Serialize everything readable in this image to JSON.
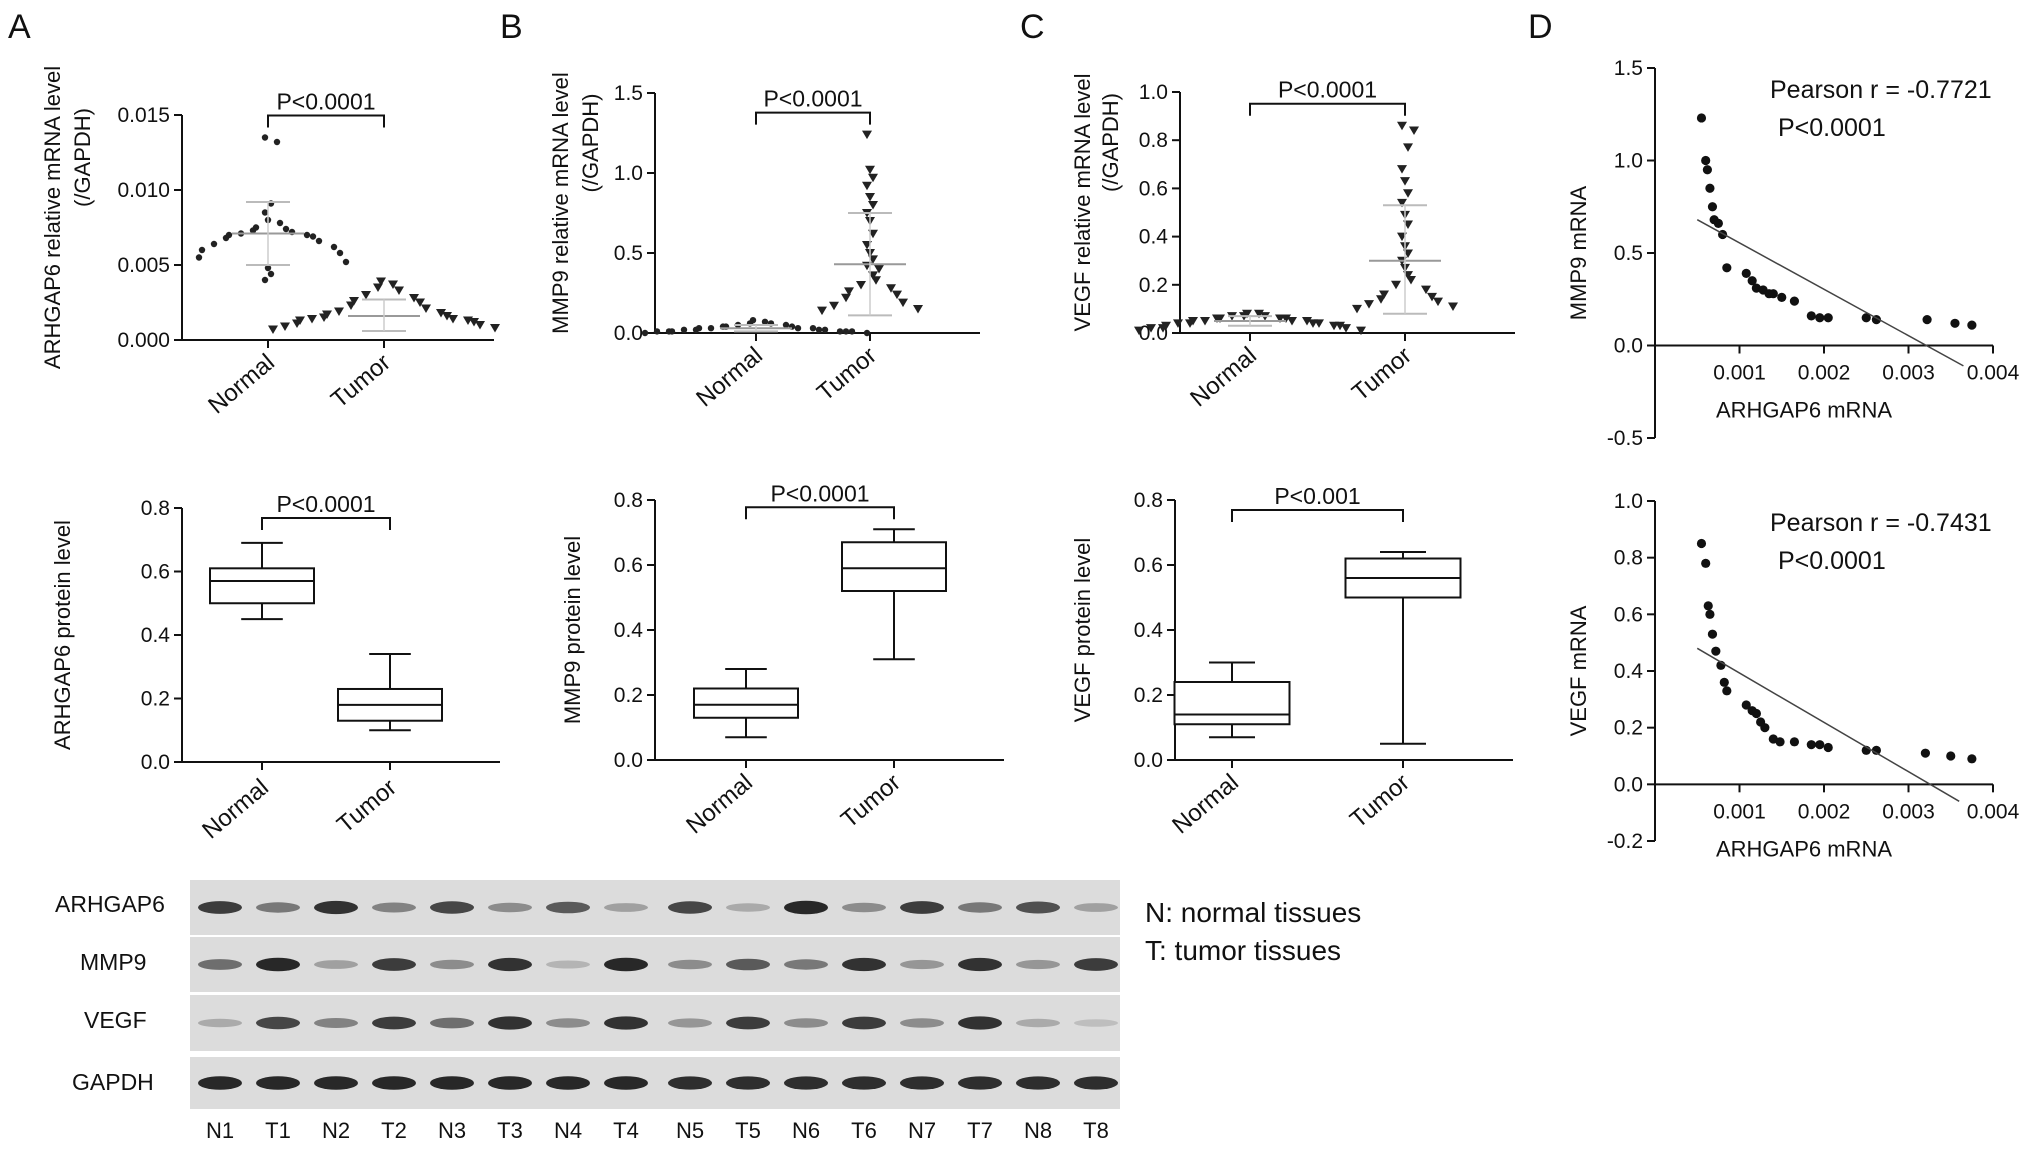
{
  "panel_letters": [
    "A",
    "B",
    "C",
    "D"
  ],
  "chart_data": [
    {
      "id": "A1",
      "type": "scatter",
      "subtype": "dot-plot",
      "ylabel": "ARHGAP6 relative mRNA level (/GAPDH)",
      "ylabel_lines": [
        "ARHGAP6 relative mRNA level",
        "(/GAPDH)"
      ],
      "ylim": [
        0,
        0.015
      ],
      "yticks": [
        "0.000",
        "0.005",
        "0.010",
        "0.015"
      ],
      "yticks_values": [
        0,
        0.005,
        0.01,
        0.015
      ],
      "categories": [
        "Normal",
        "Tumor"
      ],
      "pvalue": "P<0.0001",
      "series": [
        {
          "marker": "circle",
          "mean": 0.0071,
          "sd_upper": 0.0092,
          "sd_lower": 0.005,
          "values": [
            0.0135,
            0.0132,
            0.0091,
            0.0085,
            0.008,
            0.0078,
            0.0075,
            0.0074,
            0.0073,
            0.0072,
            0.0071,
            0.007,
            0.007,
            0.0069,
            0.0068,
            0.0066,
            0.0064,
            0.0062,
            0.006,
            0.0058,
            0.0055,
            0.0052,
            0.0048,
            0.0044,
            0.004
          ]
        },
        {
          "marker": "triangle-down",
          "mean": 0.0016,
          "sd_upper": 0.0027,
          "sd_lower": 0.0006,
          "values": [
            0.0039,
            0.0037,
            0.0035,
            0.0033,
            0.003,
            0.0028,
            0.0026,
            0.0025,
            0.0023,
            0.0021,
            0.0019,
            0.0018,
            0.0017,
            0.0016,
            0.0015,
            0.0014,
            0.0014,
            0.0013,
            0.0013,
            0.0012,
            0.0011,
            0.001,
            0.0009,
            0.0008,
            0.0007
          ]
        }
      ]
    },
    {
      "id": "A2",
      "type": "box",
      "ylabel": "ARHGAP6 protein level",
      "ylim": [
        0,
        0.8
      ],
      "yticks": [
        "0.0",
        "0.2",
        "0.4",
        "0.6",
        "0.8"
      ],
      "yticks_values": [
        0,
        0.2,
        0.4,
        0.6,
        0.8
      ],
      "categories": [
        "Normal",
        "Tumor"
      ],
      "pvalue": "P<0.0001",
      "boxes": [
        {
          "min": 0.45,
          "q1": 0.5,
          "median": 0.57,
          "q3": 0.61,
          "max": 0.69
        },
        {
          "min": 0.1,
          "q1": 0.13,
          "median": 0.18,
          "q3": 0.23,
          "max": 0.34
        }
      ]
    },
    {
      "id": "B1",
      "type": "scatter",
      "subtype": "dot-plot",
      "ylabel": "MMP9 relative mRNA level (/GAPDH)",
      "ylabel_lines": [
        "MMP9 relative mRNA level",
        "(/GAPDH)"
      ],
      "ylim": [
        0,
        1.5
      ],
      "yticks": [
        "0.0",
        "0.5",
        "1.0",
        "1.5"
      ],
      "yticks_values": [
        0,
        0.5,
        1.0,
        1.5
      ],
      "categories": [
        "Normal",
        "Tumor"
      ],
      "pvalue": "P<0.0001",
      "series": [
        {
          "marker": "circle",
          "mean": 0.03,
          "sd_upper": 0.05,
          "sd_lower": 0.01,
          "values": [
            0.08,
            0.07,
            0.06,
            0.06,
            0.05,
            0.05,
            0.04,
            0.04,
            0.04,
            0.03,
            0.03,
            0.03,
            0.03,
            0.02,
            0.02,
            0.02,
            0.02,
            0.01,
            0.01,
            0.01,
            0.01,
            0.01,
            0.01,
            0.0,
            0.0
          ]
        },
        {
          "marker": "triangle-down",
          "mean": 0.43,
          "sd_upper": 0.75,
          "sd_lower": 0.11,
          "values": [
            1.24,
            1.02,
            0.97,
            0.92,
            0.85,
            0.8,
            0.75,
            0.7,
            0.62,
            0.55,
            0.5,
            0.46,
            0.42,
            0.4,
            0.36,
            0.33,
            0.3,
            0.28,
            0.26,
            0.24,
            0.22,
            0.19,
            0.17,
            0.15,
            0.14
          ]
        }
      ]
    },
    {
      "id": "B2",
      "type": "box",
      "ylabel": "MMP9 protein level",
      "ylim": [
        0,
        0.8
      ],
      "yticks": [
        "0.0",
        "0.2",
        "0.4",
        "0.6",
        "0.8"
      ],
      "yticks_values": [
        0,
        0.2,
        0.4,
        0.6,
        0.8
      ],
      "categories": [
        "Normal",
        "Tumor"
      ],
      "pvalue": "P<0.0001",
      "boxes": [
        {
          "min": 0.07,
          "q1": 0.13,
          "median": 0.17,
          "q3": 0.22,
          "max": 0.28
        },
        {
          "min": 0.31,
          "q1": 0.52,
          "median": 0.59,
          "q3": 0.67,
          "max": 0.71
        }
      ]
    },
    {
      "id": "C1",
      "type": "scatter",
      "subtype": "dot-plot",
      "ylabel": "VEGF relative mRNA level (/GAPDH)",
      "ylabel_lines": [
        "VEGF relative mRNA level",
        "(/GAPDH)"
      ],
      "ylim": [
        0,
        1.0
      ],
      "yticks": [
        "0.0",
        "0.2",
        "0.4",
        "0.6",
        "0.8",
        "1.0"
      ],
      "yticks_values": [
        0,
        0.2,
        0.4,
        0.6,
        0.8,
        1.0
      ],
      "categories": [
        "Normal",
        "Tumor"
      ],
      "pvalue": "P<0.0001",
      "series": [
        {
          "marker": "triangle-down",
          "mean": 0.05,
          "sd_upper": 0.07,
          "sd_lower": 0.03,
          "values": [
            0.08,
            0.08,
            0.07,
            0.07,
            0.07,
            0.06,
            0.06,
            0.06,
            0.06,
            0.05,
            0.05,
            0.05,
            0.05,
            0.04,
            0.04,
            0.04,
            0.04,
            0.03,
            0.03,
            0.03,
            0.02,
            0.02,
            0.02,
            0.01,
            0.01
          ]
        },
        {
          "marker": "triangle-down",
          "mean": 0.3,
          "sd_upper": 0.53,
          "sd_lower": 0.08,
          "values": [
            0.86,
            0.84,
            0.77,
            0.68,
            0.63,
            0.58,
            0.54,
            0.49,
            0.45,
            0.4,
            0.36,
            0.33,
            0.3,
            0.27,
            0.24,
            0.22,
            0.2,
            0.18,
            0.16,
            0.15,
            0.14,
            0.13,
            0.12,
            0.11,
            0.1
          ]
        }
      ]
    },
    {
      "id": "C2",
      "type": "box",
      "ylabel": "VEGF protein level",
      "ylim": [
        0,
        0.8
      ],
      "yticks": [
        "0.0",
        "0.2",
        "0.4",
        "0.6",
        "0.8"
      ],
      "yticks_values": [
        0,
        0.2,
        0.4,
        0.6,
        0.8
      ],
      "categories": [
        "Normal",
        "Tumor"
      ],
      "pvalue": "P<0.001",
      "boxes": [
        {
          "min": 0.07,
          "q1": 0.11,
          "median": 0.14,
          "q3": 0.24,
          "max": 0.3
        },
        {
          "min": 0.05,
          "q1": 0.5,
          "median": 0.56,
          "q3": 0.62,
          "max": 0.64
        }
      ]
    },
    {
      "id": "D1",
      "type": "scatter",
      "subtype": "correlation",
      "xlabel": "ARHGAP6 mRNA",
      "ylabel": "MMP9 mRNA",
      "xlim": [
        0,
        0.004
      ],
      "ylim": [
        -0.5,
        1.5
      ],
      "xticks": [
        "0.001",
        "0.002",
        "0.003",
        "0.004"
      ],
      "xticks_values": [
        0.001,
        0.002,
        0.003,
        0.004
      ],
      "yticks": [
        "-0.5",
        "0.0",
        "0.5",
        "1.0",
        "1.5"
      ],
      "yticks_values": [
        -0.5,
        0,
        0.5,
        1.0,
        1.5
      ],
      "annotation": [
        "Pearson r = -0.7721",
        "P<0.0001"
      ],
      "fit_line": {
        "x": [
          0.0005,
          0.00365
        ],
        "y": [
          0.68,
          -0.11
        ]
      },
      "points": [
        [
          0.00055,
          1.23
        ],
        [
          0.0006,
          1.0
        ],
        [
          0.00062,
          0.95
        ],
        [
          0.00065,
          0.85
        ],
        [
          0.00068,
          0.75
        ],
        [
          0.0007,
          0.68
        ],
        [
          0.00075,
          0.66
        ],
        [
          0.0008,
          0.6
        ],
        [
          0.00085,
          0.42
        ],
        [
          0.00108,
          0.39
        ],
        [
          0.00115,
          0.35
        ],
        [
          0.0012,
          0.31
        ],
        [
          0.00128,
          0.3
        ],
        [
          0.00135,
          0.28
        ],
        [
          0.0014,
          0.28
        ],
        [
          0.0015,
          0.26
        ],
        [
          0.00165,
          0.24
        ],
        [
          0.00185,
          0.16
        ],
        [
          0.00195,
          0.15
        ],
        [
          0.00205,
          0.15
        ],
        [
          0.0025,
          0.15
        ],
        [
          0.00262,
          0.14
        ],
        [
          0.00322,
          0.14
        ],
        [
          0.00355,
          0.12
        ],
        [
          0.00375,
          0.11
        ]
      ]
    },
    {
      "id": "D2",
      "type": "scatter",
      "subtype": "correlation",
      "xlabel": "ARHGAP6 mRNA",
      "ylabel": "VEGF mRNA",
      "xlim": [
        0,
        0.004
      ],
      "ylim": [
        -0.2,
        1.0
      ],
      "xticks": [
        "0.001",
        "0.002",
        "0.003",
        "0.004"
      ],
      "xticks_values": [
        0.001,
        0.002,
        0.003,
        0.004
      ],
      "yticks": [
        "-0.2",
        "0.0",
        "0.2",
        "0.4",
        "0.6",
        "0.8",
        "1.0"
      ],
      "yticks_values": [
        -0.2,
        0,
        0.2,
        0.4,
        0.6,
        0.8,
        1.0
      ],
      "annotation": [
        "Pearson r = -0.7431",
        "P<0.0001"
      ],
      "fit_line": {
        "x": [
          0.0005,
          0.0036
        ],
        "y": [
          0.48,
          -0.06
        ]
      },
      "points": [
        [
          0.00055,
          0.85
        ],
        [
          0.0006,
          0.78
        ],
        [
          0.00063,
          0.63
        ],
        [
          0.00065,
          0.6
        ],
        [
          0.00068,
          0.53
        ],
        [
          0.00072,
          0.47
        ],
        [
          0.00078,
          0.42
        ],
        [
          0.00082,
          0.36
        ],
        [
          0.00085,
          0.33
        ],
        [
          0.00108,
          0.28
        ],
        [
          0.00115,
          0.26
        ],
        [
          0.0012,
          0.25
        ],
        [
          0.00125,
          0.22
        ],
        [
          0.0013,
          0.2
        ],
        [
          0.0014,
          0.16
        ],
        [
          0.00148,
          0.15
        ],
        [
          0.00165,
          0.15
        ],
        [
          0.00185,
          0.14
        ],
        [
          0.00195,
          0.14
        ],
        [
          0.00205,
          0.13
        ],
        [
          0.0025,
          0.12
        ],
        [
          0.00262,
          0.12
        ],
        [
          0.0032,
          0.11
        ],
        [
          0.0035,
          0.1
        ],
        [
          0.00375,
          0.09
        ]
      ]
    }
  ],
  "blot": {
    "rows": [
      "ARHGAP6",
      "MMP9",
      "VEGF",
      "GAPDH"
    ],
    "lanes_left": [
      "N1",
      "T1",
      "N2",
      "T2",
      "N3",
      "T3",
      "N4",
      "T4"
    ],
    "lanes_right": [
      "N5",
      "T5",
      "N6",
      "T6",
      "N7",
      "T7",
      "N8",
      "T8"
    ],
    "intensity": {
      "ARHGAP6": [
        0.85,
        0.55,
        0.9,
        0.5,
        0.8,
        0.45,
        0.7,
        0.35,
        0.8,
        0.3,
        0.95,
        0.45,
        0.85,
        0.55,
        0.75,
        0.35
      ],
      "MMP9": [
        0.6,
        0.95,
        0.35,
        0.85,
        0.45,
        0.9,
        0.25,
        0.95,
        0.45,
        0.7,
        0.55,
        0.9,
        0.4,
        0.9,
        0.4,
        0.85
      ],
      "VEGF": [
        0.3,
        0.8,
        0.5,
        0.85,
        0.6,
        0.9,
        0.45,
        0.9,
        0.4,
        0.85,
        0.45,
        0.85,
        0.45,
        0.9,
        0.3,
        0.2
      ],
      "GAPDH": [
        0.95,
        0.95,
        0.95,
        0.95,
        0.95,
        0.95,
        0.95,
        0.95,
        0.92,
        0.92,
        0.92,
        0.92,
        0.92,
        0.92,
        0.92,
        0.92
      ]
    },
    "legend": [
      "N: normal tissues",
      "T: tumor tissues"
    ]
  }
}
